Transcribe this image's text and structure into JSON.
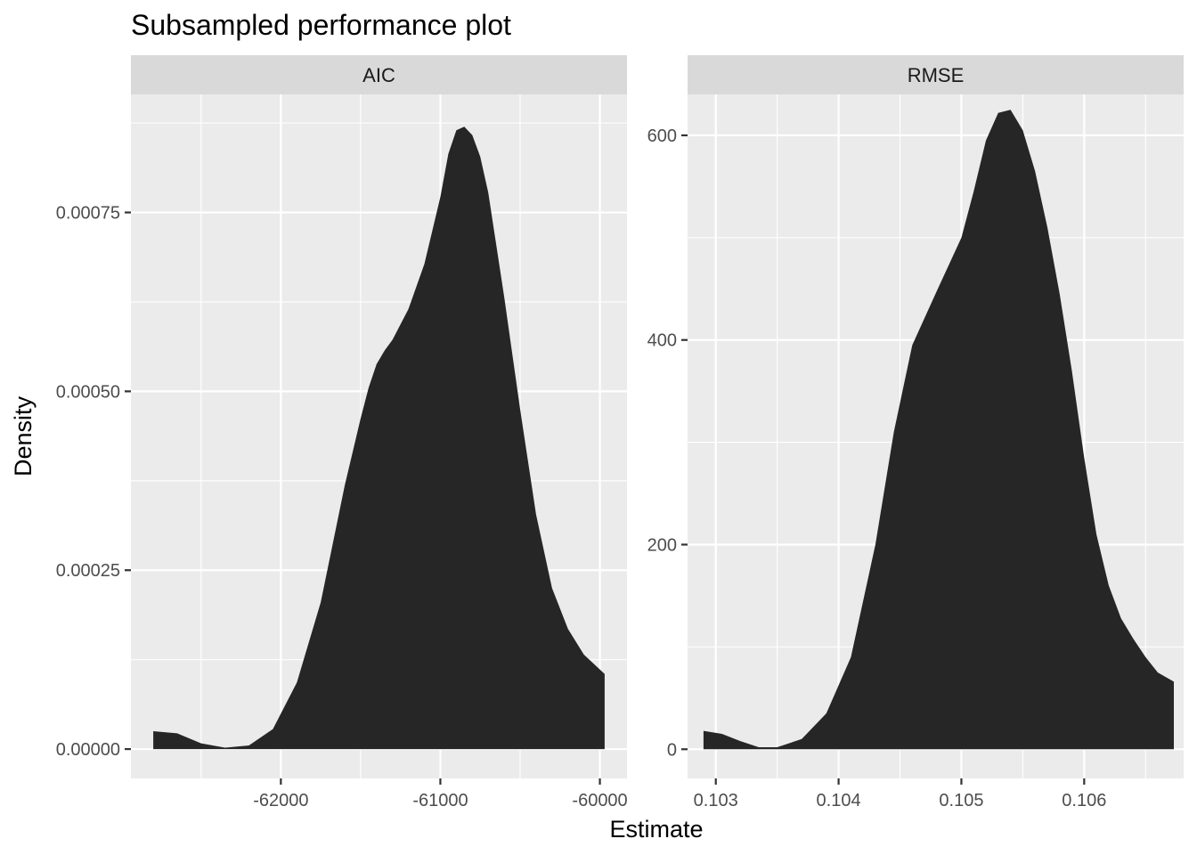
{
  "chart_data": {
    "type": "area",
    "title": "Subsampled performance plot",
    "xlabel": "Estimate",
    "ylabel": "Density",
    "grid": true,
    "panels": [
      {
        "name": "AIC",
        "xlim": [
          -62940,
          -59830
        ],
        "ylim": [
          -4.1e-05,
          0.000915
        ],
        "x_ticks": [
          -62000,
          -61000,
          -60000
        ],
        "x_tick_labels": [
          "-62000",
          "-61000",
          "-60000"
        ],
        "y_ticks": [
          0,
          0.00025,
          0.0005,
          0.00075
        ],
        "y_tick_labels": [
          "0.00000",
          "0.00025",
          "0.00050",
          "0.00075"
        ],
        "x": [
          -62800,
          -62650,
          -62500,
          -62350,
          -62200,
          -62050,
          -61900,
          -61750,
          -61600,
          -61500,
          -61450,
          -61400,
          -61350,
          -61300,
          -61200,
          -61100,
          -61000,
          -60950,
          -60900,
          -60850,
          -60800,
          -60750,
          -60700,
          -60600,
          -60500,
          -60400,
          -60300,
          -60200,
          -60100,
          -59970
        ],
        "y": [
          2.5e-05,
          2.2e-05,
          8e-06,
          2e-06,
          5e-06,
          2.8e-05,
          9.3e-05,
          0.000205,
          0.000368,
          0.000462,
          0.000505,
          0.000538,
          0.000557,
          0.000572,
          0.000615,
          0.000678,
          0.000772,
          0.000832,
          0.000865,
          0.00087,
          0.000858,
          0.000828,
          0.000778,
          0.000632,
          0.000475,
          0.000328,
          0.000225,
          0.000168,
          0.000132,
          0.000105
        ]
      },
      {
        "name": "RMSE",
        "xlim": [
          0.10277,
          0.10681
        ],
        "ylim": [
          -28.5,
          640
        ],
        "x_ticks": [
          0.103,
          0.104,
          0.105,
          0.106
        ],
        "x_tick_labels": [
          "0.103",
          "0.104",
          "0.105",
          "0.106"
        ],
        "y_ticks": [
          0,
          200,
          400,
          600
        ],
        "y_tick_labels": [
          "0",
          "200",
          "400",
          "600"
        ],
        "x": [
          0.1029,
          0.10305,
          0.1032,
          0.10335,
          0.1035,
          0.1037,
          0.1039,
          0.1041,
          0.1043,
          0.10445,
          0.1046,
          0.1048,
          0.105,
          0.1051,
          0.1052,
          0.1053,
          0.1054,
          0.1055,
          0.1056,
          0.1057,
          0.1058,
          0.1059,
          0.106,
          0.1061,
          0.1062,
          0.1063,
          0.1064,
          0.1065,
          0.1066,
          0.10673
        ],
        "y": [
          18,
          15,
          8,
          2,
          2,
          10,
          35,
          90,
          200,
          310,
          395,
          448,
          500,
          545,
          595,
          622,
          625,
          605,
          565,
          510,
          445,
          370,
          285,
          210,
          160,
          128,
          108,
          90,
          75,
          66
        ]
      }
    ]
  }
}
